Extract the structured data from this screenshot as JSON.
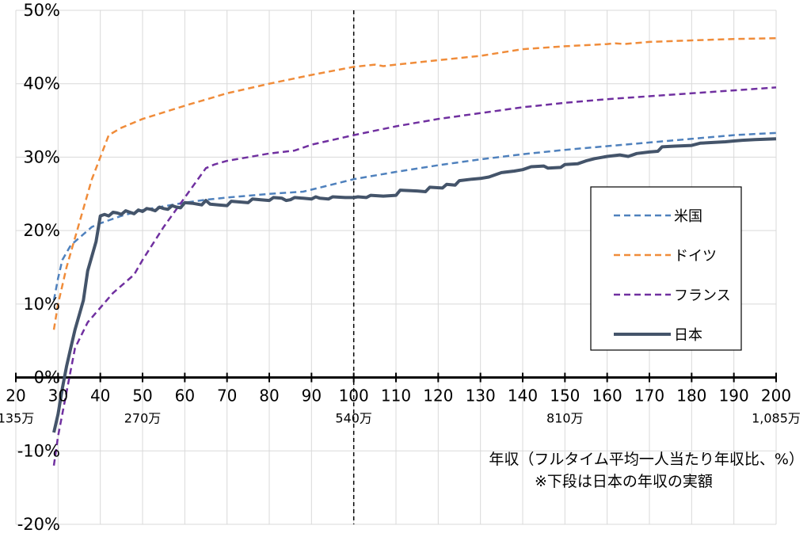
{
  "chart_data": {
    "type": "line",
    "xlabel": "年収（フルタイム平均一人当たり年収比、%）",
    "xlabel_note": "※下段は日本の年収の実額",
    "x_range": [
      20,
      200
    ],
    "ylim": [
      -20,
      50
    ],
    "y_ticks": [
      {
        "value": 50,
        "label": "50%"
      },
      {
        "value": 40,
        "label": "40%"
      },
      {
        "value": 30,
        "label": "30%"
      },
      {
        "value": 20,
        "label": "20%"
      },
      {
        "value": 10,
        "label": "10%"
      },
      {
        "value": 0,
        "label": "0%"
      },
      {
        "value": -10,
        "label": "-10%"
      },
      {
        "value": -20,
        "label": "-20%"
      }
    ],
    "x_ticks": [
      {
        "value": 20,
        "label": "20"
      },
      {
        "value": 30,
        "label": "30"
      },
      {
        "value": 40,
        "label": "40"
      },
      {
        "value": 50,
        "label": "50"
      },
      {
        "value": 60,
        "label": "60"
      },
      {
        "value": 70,
        "label": "70"
      },
      {
        "value": 80,
        "label": "80"
      },
      {
        "value": 90,
        "label": "90"
      },
      {
        "value": 100,
        "label": "100"
      },
      {
        "value": 110,
        "label": "110"
      },
      {
        "value": 120,
        "label": "120"
      },
      {
        "value": 130,
        "label": "130"
      },
      {
        "value": 140,
        "label": "140"
      },
      {
        "value": 150,
        "label": "150"
      },
      {
        "value": 160,
        "label": "160"
      },
      {
        "value": 170,
        "label": "170"
      },
      {
        "value": 180,
        "label": "180"
      },
      {
        "value": 190,
        "label": "190"
      },
      {
        "value": 200,
        "label": "200"
      }
    ],
    "x_amount_labels": [
      {
        "value": 20,
        "label": "135万"
      },
      {
        "value": 50,
        "label": "270万"
      },
      {
        "value": 100,
        "label": "540万"
      },
      {
        "value": 150,
        "label": "810万"
      },
      {
        "value": 200,
        "label": "1,085万"
      }
    ],
    "reference_line_x": 100,
    "grid": true,
    "legend_position": "right",
    "series": [
      {
        "name": "米国",
        "color": "#4f81bd",
        "style": "dashed",
        "points": [
          [
            29,
            10.5
          ],
          [
            30,
            13.5
          ],
          [
            31,
            16
          ],
          [
            33,
            18
          ],
          [
            35,
            19
          ],
          [
            38,
            20.5
          ],
          [
            40,
            21
          ],
          [
            45,
            22
          ],
          [
            50,
            22.8
          ],
          [
            55,
            23.3
          ],
          [
            60,
            23.8
          ],
          [
            65,
            24.2
          ],
          [
            70,
            24.5
          ],
          [
            80,
            25
          ],
          [
            88,
            25.3
          ],
          [
            93,
            26
          ],
          [
            100,
            27
          ],
          [
            110,
            28
          ],
          [
            120,
            28.9
          ],
          [
            130,
            29.7
          ],
          [
            140,
            30.4
          ],
          [
            150,
            31
          ],
          [
            160,
            31.5
          ],
          [
            170,
            32
          ],
          [
            180,
            32.5
          ],
          [
            190,
            33
          ],
          [
            200,
            33.3
          ]
        ]
      },
      {
        "name": "ドイツ",
        "color": "#f08c3a",
        "style": "dashed",
        "points": [
          [
            29,
            6.5
          ],
          [
            30,
            10
          ],
          [
            32,
            15
          ],
          [
            35,
            21
          ],
          [
            38,
            27
          ],
          [
            40,
            30
          ],
          [
            42,
            33
          ],
          [
            45,
            34
          ],
          [
            50,
            35.2
          ],
          [
            60,
            37
          ],
          [
            70,
            38.7
          ],
          [
            80,
            40
          ],
          [
            90,
            41.2
          ],
          [
            100,
            42.3
          ],
          [
            105,
            42.6
          ],
          [
            107,
            42.4
          ],
          [
            110,
            42.6
          ],
          [
            120,
            43.2
          ],
          [
            130,
            43.8
          ],
          [
            140,
            44.7
          ],
          [
            150,
            45.1
          ],
          [
            160,
            45.4
          ],
          [
            162,
            45.5
          ],
          [
            164,
            45.4
          ],
          [
            170,
            45.7
          ],
          [
            180,
            45.9
          ],
          [
            190,
            46.1
          ],
          [
            200,
            46.2
          ]
        ]
      },
      {
        "name": "フランス",
        "color": "#7030a0",
        "style": "dashed",
        "points": [
          [
            29,
            -12
          ],
          [
            30,
            -8
          ],
          [
            32,
            -2
          ],
          [
            34,
            4
          ],
          [
            37,
            7.5
          ],
          [
            40,
            9.5
          ],
          [
            43,
            11.5
          ],
          [
            45,
            12.5
          ],
          [
            48,
            14
          ],
          [
            50,
            16
          ],
          [
            55,
            20.5
          ],
          [
            60,
            24.5
          ],
          [
            65,
            28.5
          ],
          [
            67,
            29
          ],
          [
            70,
            29.5
          ],
          [
            80,
            30.5
          ],
          [
            86,
            30.9
          ],
          [
            90,
            31.7
          ],
          [
            100,
            33
          ],
          [
            110,
            34.2
          ],
          [
            120,
            35.2
          ],
          [
            130,
            36
          ],
          [
            140,
            36.8
          ],
          [
            150,
            37.4
          ],
          [
            160,
            37.9
          ],
          [
            170,
            38.3
          ],
          [
            180,
            38.7
          ],
          [
            190,
            39.1
          ],
          [
            200,
            39.5
          ]
        ]
      },
      {
        "name": "日本",
        "color": "#44546a",
        "style": "solid",
        "points": [
          [
            29,
            -7.5
          ],
          [
            30,
            -5
          ],
          [
            31,
            -1.5
          ],
          [
            32,
            1.5
          ],
          [
            33,
            4
          ],
          [
            34,
            6.5
          ],
          [
            35,
            8.5
          ],
          [
            36,
            10.5
          ],
          [
            37,
            14.5
          ],
          [
            38,
            16.5
          ],
          [
            39,
            18.5
          ],
          [
            40,
            22
          ],
          [
            41,
            22.2
          ],
          [
            42,
            22
          ],
          [
            43,
            22.5
          ],
          [
            44,
            22.4
          ],
          [
            45,
            22.2
          ],
          [
            46,
            22.7
          ],
          [
            47,
            22.5
          ],
          [
            48,
            22.3
          ],
          [
            49,
            22.8
          ],
          [
            50,
            22.6
          ],
          [
            51,
            23
          ],
          [
            52,
            22.9
          ],
          [
            53,
            22.7
          ],
          [
            54,
            23.2
          ],
          [
            55,
            23
          ],
          [
            56,
            22.9
          ],
          [
            57,
            23.4
          ],
          [
            58,
            23.2
          ],
          [
            59,
            23.1
          ],
          [
            60,
            23.8
          ],
          [
            62,
            23.7
          ],
          [
            64,
            23.5
          ],
          [
            65,
            24.1
          ],
          [
            66,
            23.6
          ],
          [
            68,
            23.5
          ],
          [
            70,
            23.4
          ],
          [
            71,
            24
          ],
          [
            73,
            23.9
          ],
          [
            75,
            23.8
          ],
          [
            76,
            24.3
          ],
          [
            78,
            24.2
          ],
          [
            80,
            24.1
          ],
          [
            81,
            24.5
          ],
          [
            83,
            24.4
          ],
          [
            84,
            24.1
          ],
          [
            85,
            24.2
          ],
          [
            86,
            24.5
          ],
          [
            88,
            24.4
          ],
          [
            90,
            24.3
          ],
          [
            91,
            24.6
          ],
          [
            92,
            24.4
          ],
          [
            94,
            24.3
          ],
          [
            95,
            24.6
          ],
          [
            98,
            24.5
          ],
          [
            100,
            24.5
          ],
          [
            101,
            24.6
          ],
          [
            103,
            24.5
          ],
          [
            104,
            24.8
          ],
          [
            107,
            24.7
          ],
          [
            110,
            24.8
          ],
          [
            111,
            25.5
          ],
          [
            115,
            25.4
          ],
          [
            117,
            25.3
          ],
          [
            118,
            25.9
          ],
          [
            121,
            25.8
          ],
          [
            122,
            26.3
          ],
          [
            124,
            26.2
          ],
          [
            125,
            26.8
          ],
          [
            128,
            27
          ],
          [
            130,
            27.1
          ],
          [
            132,
            27.3
          ],
          [
            135,
            27.9
          ],
          [
            138,
            28.1
          ],
          [
            140,
            28.3
          ],
          [
            142,
            28.7
          ],
          [
            145,
            28.8
          ],
          [
            146,
            28.5
          ],
          [
            149,
            28.6
          ],
          [
            150,
            29
          ],
          [
            153,
            29.1
          ],
          [
            155,
            29.5
          ],
          [
            157,
            29.8
          ],
          [
            160,
            30.1
          ],
          [
            163,
            30.3
          ],
          [
            165,
            30.1
          ],
          [
            167,
            30.5
          ],
          [
            170,
            30.7
          ],
          [
            172,
            30.8
          ],
          [
            173,
            31.4
          ],
          [
            176,
            31.5
          ],
          [
            180,
            31.6
          ],
          [
            182,
            31.9
          ],
          [
            185,
            32
          ],
          [
            188,
            32.1
          ],
          [
            190,
            32.2
          ],
          [
            192,
            32.3
          ],
          [
            195,
            32.4
          ],
          [
            200,
            32.5
          ]
        ]
      }
    ]
  }
}
